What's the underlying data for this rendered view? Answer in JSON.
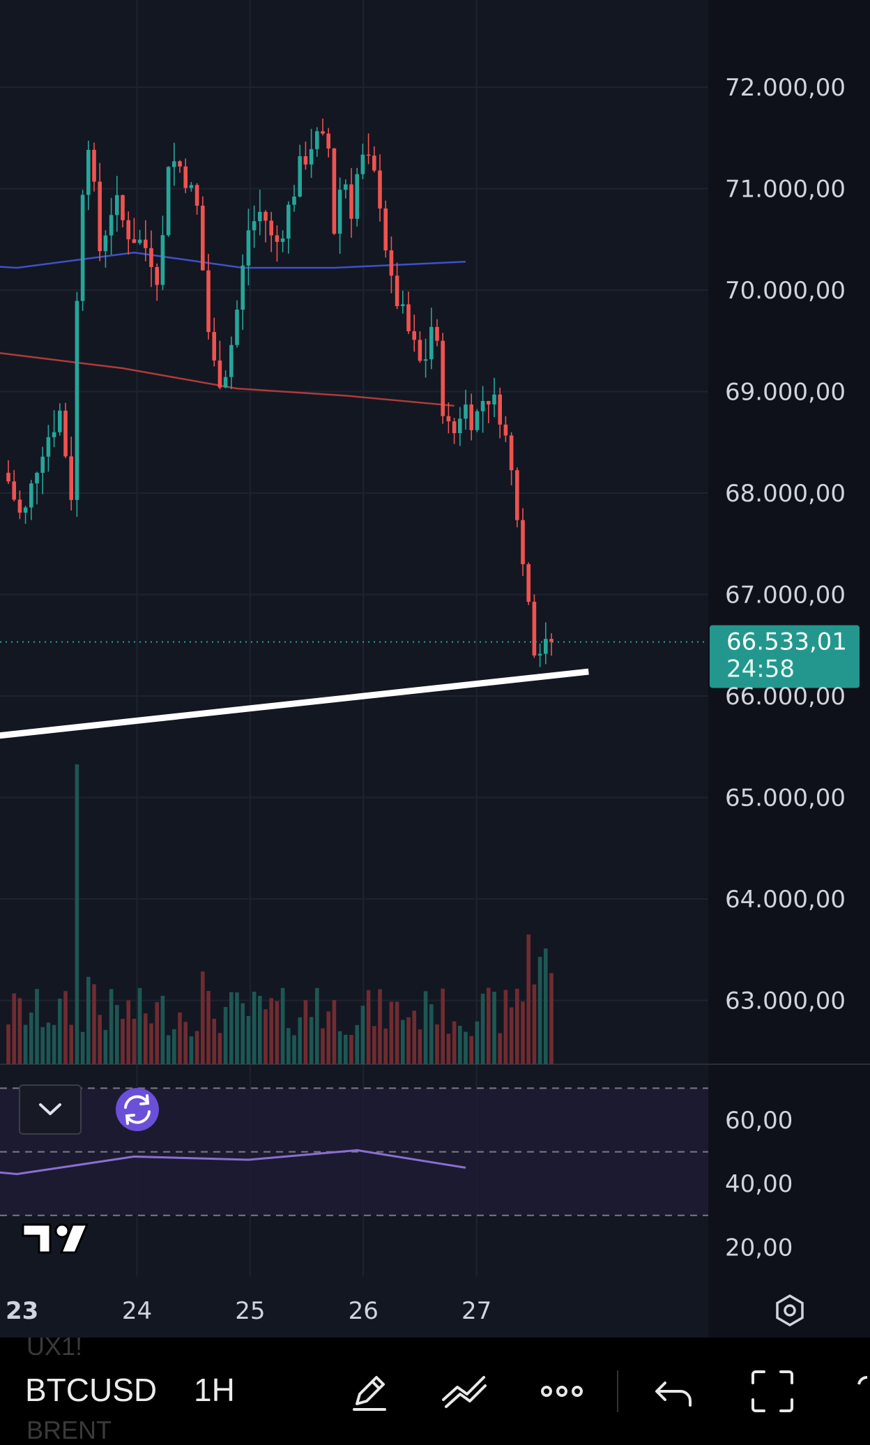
{
  "chart_data": {
    "type": "candlestick",
    "symbol": "BTCUSD",
    "interval": "1H",
    "x_ticks": [
      "23",
      "24",
      "25",
      "26",
      "27"
    ],
    "price_ticks": [
      "72.000,00",
      "71.000,00",
      "70.000,00",
      "69.000,00",
      "68.000,00",
      "67.000,00",
      "66.000,00",
      "65.000,00",
      "64.000,00",
      "63.000,00"
    ],
    "price_range": [
      62380,
      72780
    ],
    "last_price": {
      "label": "66.533,01",
      "value": 66533.01,
      "countdown": "24:58"
    },
    "ohlc_anchors": [
      [
        0.0,
        68200
      ],
      [
        3.0,
        67700
      ],
      [
        6.0,
        68400
      ],
      [
        9.5,
        68800
      ],
      [
        11.5,
        68000
      ],
      [
        13.0,
        70800
      ],
      [
        14.5,
        71500
      ],
      [
        16.5,
        70400
      ],
      [
        19.0,
        70900
      ],
      [
        21.0,
        70600
      ],
      [
        23.0,
        70500
      ],
      [
        25.0,
        70400
      ],
      [
        27.0,
        70100
      ],
      [
        28.5,
        71300
      ],
      [
        31.0,
        71200
      ],
      [
        33.5,
        70800
      ],
      [
        36.0,
        69300
      ],
      [
        38.0,
        69100
      ],
      [
        40.0,
        69600
      ],
      [
        42.5,
        70600
      ],
      [
        45.0,
        70800
      ],
      [
        47.0,
        70400
      ],
      [
        49.0,
        70700
      ],
      [
        51.5,
        71200
      ],
      [
        54.0,
        71500
      ],
      [
        56.5,
        71400
      ],
      [
        57.5,
        70600
      ],
      [
        59.0,
        71200
      ],
      [
        60.5,
        70800
      ],
      [
        62.0,
        71300
      ],
      [
        64.0,
        71200
      ],
      [
        66.0,
        70800
      ],
      [
        67.0,
        70100
      ],
      [
        68.5,
        69900
      ],
      [
        71.0,
        69500
      ],
      [
        73.0,
        69200
      ],
      [
        75.0,
        69800
      ],
      [
        76.0,
        69000
      ],
      [
        78.0,
        68500
      ],
      [
        80.0,
        68900
      ],
      [
        82.0,
        68700
      ],
      [
        84.0,
        69000
      ],
      [
        86.5,
        68800
      ],
      [
        88.0,
        68400
      ],
      [
        89.5,
        67800
      ],
      [
        90.5,
        67300
      ],
      [
        92.0,
        66800
      ],
      [
        93.0,
        66200
      ],
      [
        94.5,
        66600
      ],
      [
        95.5,
        66533
      ]
    ],
    "ma_blue": {
      "color": "#3f51c9",
      "points": [
        [
          -1.5,
          70230
        ],
        [
          1.5,
          70220
        ],
        [
          22,
          70370
        ],
        [
          41,
          70220
        ],
        [
          57,
          70220
        ],
        [
          80,
          70280
        ]
      ]
    },
    "ma_red": {
      "color": "#b03a3a",
      "points": [
        [
          -1.5,
          69380
        ],
        [
          20.0,
          69230
        ],
        [
          40.0,
          69030
        ],
        [
          59.0,
          68960
        ],
        [
          78.0,
          68860
        ]
      ]
    },
    "trendline": {
      "color": "#ffffff",
      "points": [
        [
          -1.5,
          65610
        ],
        [
          101.5,
          66240
        ]
      ]
    },
    "oscillator": {
      "ticks": [
        "60,00",
        "40,00",
        "20,00"
      ],
      "range": [
        11,
        77
      ],
      "band": [
        30,
        70
      ],
      "midline": 50,
      "color": "#8a6fd1",
      "points": [
        [
          -1.5,
          43.5
        ],
        [
          1.5,
          43.0
        ],
        [
          22.0,
          48.5
        ],
        [
          42.0,
          47.5
        ],
        [
          61.0,
          50.5
        ],
        [
          80.0,
          45.0
        ]
      ]
    },
    "colors": {
      "up": "#26a69a",
      "down": "#ef5350",
      "background": "#131722",
      "axis_background": "#0e1119",
      "grid": "#1f2330"
    }
  },
  "watermark": "TV",
  "toolbar": {
    "symbol": "BTCUSD",
    "interval": "1H",
    "ghost_above": "UX1!",
    "ghost_below": "BRENT"
  }
}
